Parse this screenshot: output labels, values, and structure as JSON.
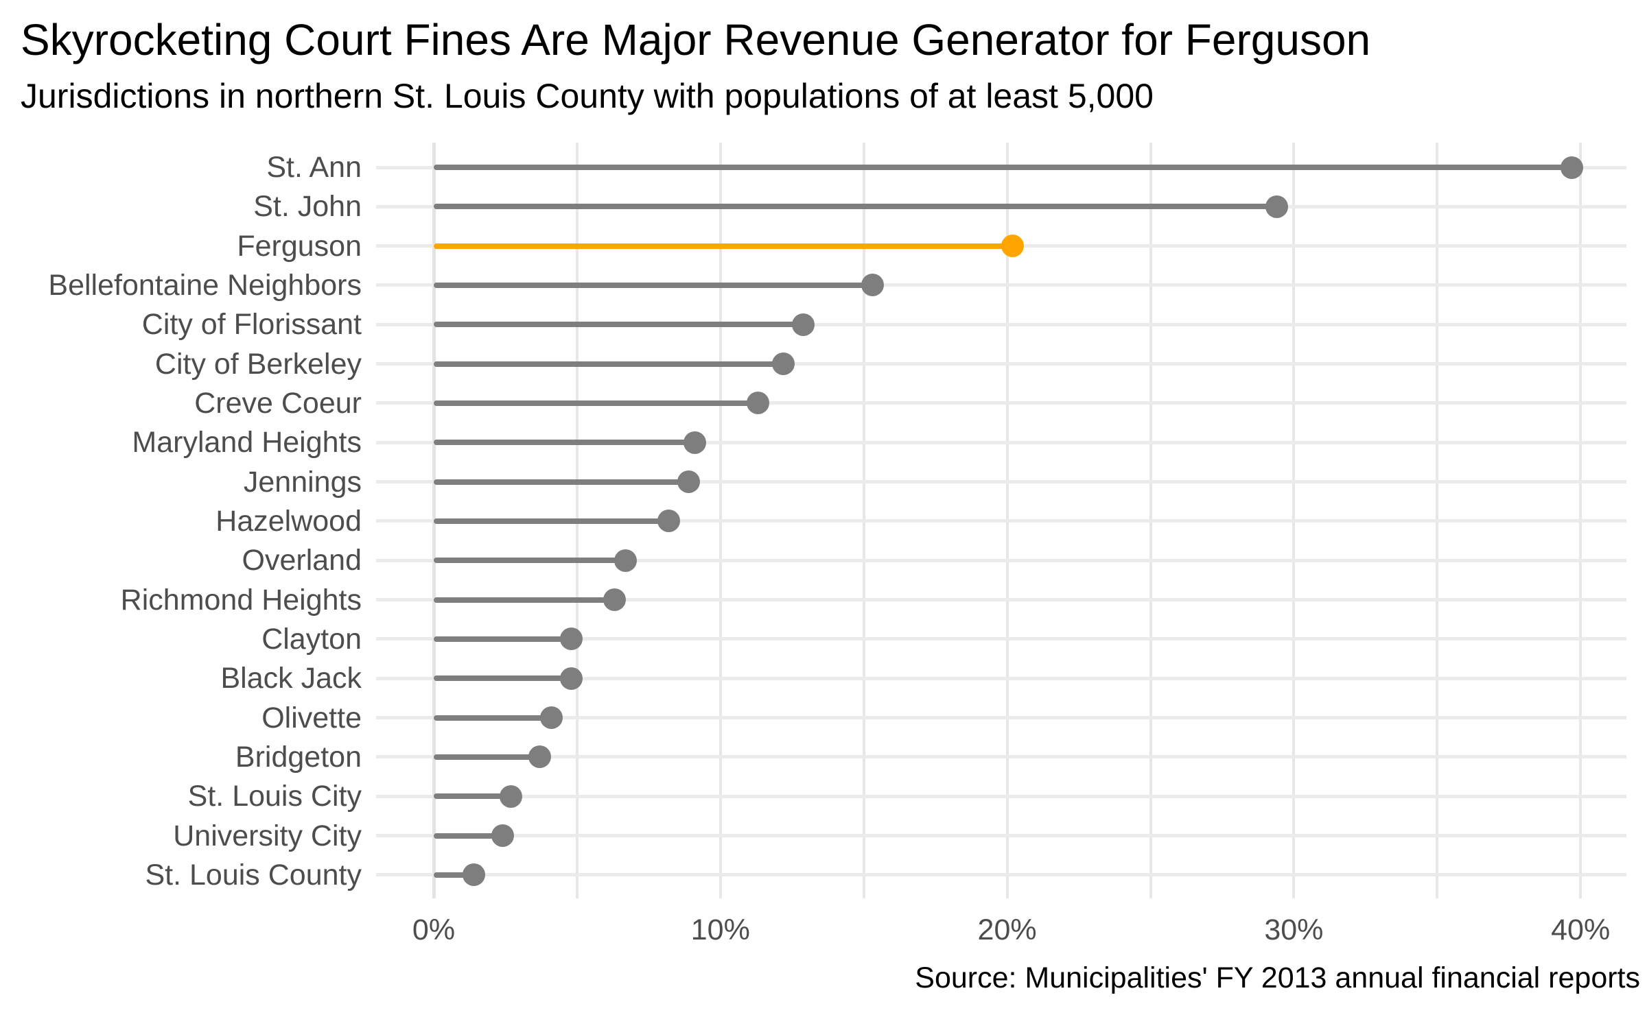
{
  "chart_data": {
    "type": "bar",
    "style": "lollipop",
    "orientation": "horizontal",
    "title": "Skyrocketing Court Fines Are Major Revenue Generator for Ferguson",
    "subtitle": "Jurisdictions in northern St. Louis County with populations of at least 5,000",
    "categories": [
      "St. Ann",
      "St. John",
      "Ferguson",
      "Bellefontaine Neighbors",
      "City of Florissant",
      "City of Berkeley",
      "Creve Coeur",
      "Maryland Heights",
      "Jennings",
      "Hazelwood",
      "Overland",
      "Richmond Heights",
      "Clayton",
      "Black Jack",
      "Olivette",
      "Bridgeton",
      "St. Louis City",
      "University City",
      "St. Louis County"
    ],
    "values": [
      39.7,
      29.4,
      20.2,
      15.3,
      12.9,
      12.2,
      11.3,
      9.1,
      8.9,
      8.2,
      6.7,
      6.3,
      4.8,
      4.8,
      4.1,
      3.7,
      2.7,
      2.4,
      1.4
    ],
    "unit": "%",
    "xlabel": "",
    "ylabel": "",
    "xlim": [
      0,
      40
    ],
    "x_ticks": [
      "0%",
      "10%",
      "20%",
      "30%",
      "40%"
    ],
    "x_tick_values": [
      0,
      10,
      20,
      30,
      40
    ],
    "x_minor_grid_step": 5,
    "grid": "vertical lines every 5%, light horizontal line per row",
    "legend": "none",
    "highlight_category": "Ferguson",
    "colors": {
      "default_series": "#7E7E7E",
      "highlight_series": "#FFA500",
      "grid_vertical": "#E7E7E7",
      "grid_zero_axis": "#E3E3E3",
      "grid_horizontal": "#EBEBEB",
      "axis_text": "#4D4D4D",
      "title_text": "#000000",
      "background": "#FFFFFF"
    },
    "source": "Source: Municipalities' FY 2013 annual financial reports"
  }
}
